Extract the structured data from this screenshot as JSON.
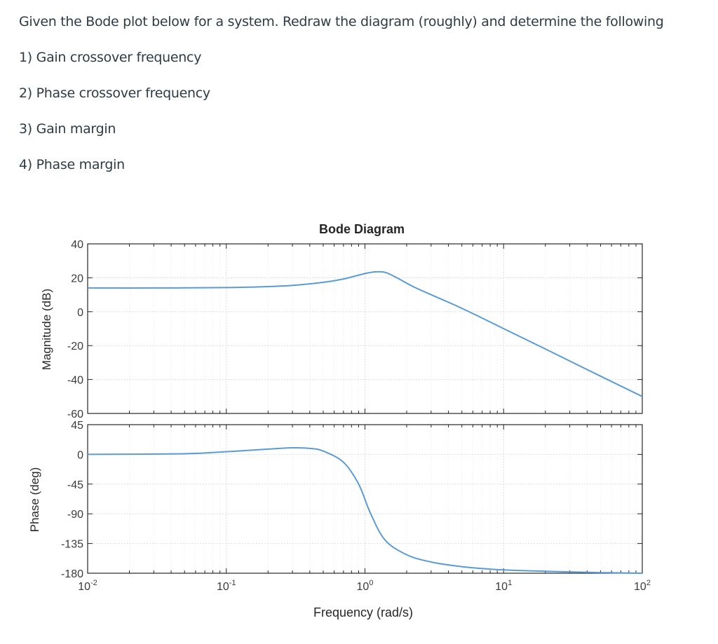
{
  "question": {
    "prompt": "Given the Bode plot below for a system.  Redraw the diagram (roughly) and determine the following",
    "items": [
      "1) Gain crossover frequency",
      "2) Phase crossover frequency",
      "3) Gain margin",
      "4) Phase margin"
    ]
  },
  "colors": {
    "curve": "#5a9bd3",
    "axis": "#262626",
    "grid": "#dcdcdc",
    "text": "#2d3b45"
  },
  "chart_data": [
    {
      "type": "line",
      "title": "Bode Diagram",
      "xlabel": "Frequency  (rad/s)",
      "ylabel": "Magnitude (dB)",
      "xscale": "log",
      "xlim": [
        0.01,
        100
      ],
      "ylim": [
        -60,
        40
      ],
      "yticks": [
        40,
        20,
        0,
        -20,
        -40,
        -60
      ],
      "xticks": [
        "10^-2",
        "10^-1",
        "10^0",
        "10^1",
        "10^2"
      ],
      "grid": true,
      "series": [
        {
          "x": [
            0.01,
            0.03,
            0.1,
            0.2,
            0.3,
            0.5,
            0.7,
            1.0,
            1.2,
            1.4,
            1.7,
            2.2,
            3.0,
            5.0,
            10,
            20,
            50,
            100
          ],
          "values": [
            14,
            14,
            14.2,
            14.8,
            15.5,
            17.3,
            19.3,
            22.5,
            23.5,
            23.2,
            20,
            15,
            10,
            2,
            -10,
            -22,
            -38,
            -50
          ]
        }
      ]
    },
    {
      "type": "line",
      "xlabel": "Frequency  (rad/s)",
      "ylabel": "Phase (deg)",
      "xscale": "log",
      "xlim": [
        0.01,
        100
      ],
      "ylim": [
        -180,
        45
      ],
      "yticks": [
        45,
        0,
        -45,
        -90,
        -135,
        -180
      ],
      "xticks": [
        "10^-2",
        "10^-1",
        "10^0",
        "10^1",
        "10^2"
      ],
      "grid": true,
      "series": [
        {
          "x": [
            0.01,
            0.05,
            0.1,
            0.2,
            0.3,
            0.4,
            0.5,
            0.7,
            0.9,
            1.1,
            1.4,
            2.0,
            3.0,
            5.0,
            10,
            20,
            50,
            100
          ],
          "values": [
            0,
            1,
            4,
            8,
            10,
            9,
            5,
            -12,
            -45,
            -90,
            -130,
            -152,
            -163,
            -170,
            -175,
            -177,
            -179,
            -180
          ]
        }
      ]
    }
  ]
}
